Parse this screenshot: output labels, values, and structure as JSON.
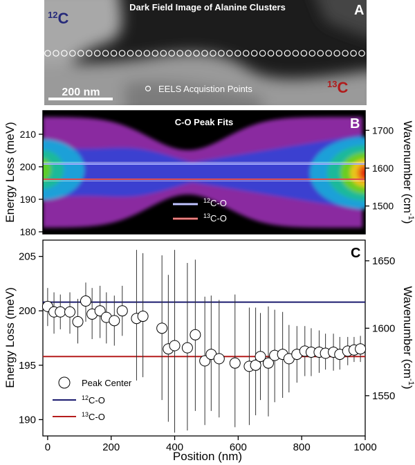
{
  "panel_a": {
    "title": "Dark Field Image of Alanine Clusters",
    "letter": "A",
    "label_12c_sup": "12",
    "label_12c": "C",
    "label_13c_sup": "13",
    "label_13c": "C",
    "scalebar": "200 nm",
    "legend": "EELS Acquistion Points",
    "colors": {
      "label_12c": "#262a7a",
      "label_13c": "#b01c1c"
    }
  },
  "panel_b": {
    "title": "C-O Peak Fits",
    "letter": "B",
    "ylabel_left": "Energy Loss (meV)",
    "ylabel_right": "Wavenumber (cm",
    "ylabel_right_sup": "-1",
    "ylabel_right_end": ")",
    "left_ticks": [
      "210",
      "200",
      "190",
      "180"
    ],
    "right_ticks": [
      "1700",
      "1600",
      "1500"
    ],
    "legend": [
      {
        "sup": "12",
        "text": "C-O",
        "color": "#aab0ff"
      },
      {
        "sup": "13",
        "text": "C-O",
        "color": "#e05050"
      }
    ]
  },
  "panel_c": {
    "letter": "C",
    "ylabel_left": "Energy Loss (meV)",
    "ylabel_right": "Wavenumber (cm",
    "ylabel_right_sup": "-1",
    "ylabel_right_end": ")",
    "xlabel": "Position (nm)",
    "legend": [
      {
        "label": "Peak Center",
        "kind": "marker"
      },
      {
        "sup": "12",
        "label": "C-O",
        "kind": "line",
        "color": "#1a1a6e"
      },
      {
        "sup": "13",
        "label": "C-O",
        "kind": "line",
        "color": "#b51c1c"
      }
    ]
  },
  "chart_data": {
    "type": "scatter",
    "xlabel": "Position (nm)",
    "ylabel": "Energy Loss (meV)",
    "ylabel_right": "Wavenumber (cm-1)",
    "xlim": [
      -15,
      1000
    ],
    "ylim": [
      188.5,
      206.5
    ],
    "x_ticks": [
      0,
      200,
      400,
      600,
      800,
      1000
    ],
    "y_ticks": [
      190,
      195,
      200,
      205
    ],
    "right_ticks": [
      1550,
      1600,
      1650
    ],
    "hlines": [
      {
        "name": "12C-O",
        "y": 200.8,
        "color": "#1a1a6e"
      },
      {
        "name": "13C-O",
        "y": 195.8,
        "color": "#b51c1c"
      }
    ],
    "series": [
      {
        "name": "Peak Center",
        "points": [
          {
            "x": 0,
            "y": 200.4,
            "lo": 198.6,
            "hi": 202.1
          },
          {
            "x": 20,
            "y": 199.9,
            "lo": 197.9,
            "hi": 201.7
          },
          {
            "x": 40,
            "y": 199.9,
            "lo": 198.3,
            "hi": 201.5
          },
          {
            "x": 70,
            "y": 199.9,
            "lo": 197.9,
            "hi": 201.7
          },
          {
            "x": 95,
            "y": 199.0,
            "lo": 197.0,
            "hi": 201.1
          },
          {
            "x": 120,
            "y": 200.9,
            "lo": 199.0,
            "hi": 202.6
          },
          {
            "x": 140,
            "y": 199.7,
            "lo": 197.4,
            "hi": 202.1
          },
          {
            "x": 165,
            "y": 200.0,
            "lo": 197.5,
            "hi": 202.3
          },
          {
            "x": 185,
            "y": 199.4,
            "lo": 197.0,
            "hi": 201.7
          },
          {
            "x": 210,
            "y": 199.1,
            "lo": 196.8,
            "hi": 201.4
          },
          {
            "x": 235,
            "y": 200.0,
            "lo": 197.7,
            "hi": 202.3
          },
          {
            "x": 280,
            "y": 199.3,
            "lo": 193.6,
            "hi": 205.6
          },
          {
            "x": 300,
            "y": 199.5,
            "lo": 193.9,
            "hi": 205.3
          },
          {
            "x": 360,
            "y": 198.4,
            "lo": 191.8,
            "hi": 205.1
          },
          {
            "x": 380,
            "y": 196.5,
            "lo": 189.8,
            "hi": 203.3
          },
          {
            "x": 400,
            "y": 196.8,
            "lo": 188.8,
            "hi": 205.6
          },
          {
            "x": 440,
            "y": 196.6,
            "lo": 189.0,
            "hi": 204.4
          },
          {
            "x": 465,
            "y": 197.8,
            "lo": 190.8,
            "hi": 204.7
          },
          {
            "x": 495,
            "y": 195.4,
            "lo": 189.5,
            "hi": 201.3
          },
          {
            "x": 515,
            "y": 196.0,
            "lo": 190.8,
            "hi": 201.4
          },
          {
            "x": 540,
            "y": 195.6,
            "lo": 190.2,
            "hi": 201.0
          },
          {
            "x": 590,
            "y": 195.2,
            "lo": 189.3,
            "hi": 201.5
          },
          {
            "x": 635,
            "y": 194.9,
            "lo": 189.5,
            "hi": 200.3
          },
          {
            "x": 655,
            "y": 195.0,
            "lo": 190.4,
            "hi": 200.3
          },
          {
            "x": 670,
            "y": 195.8,
            "lo": 191.8,
            "hi": 199.8
          },
          {
            "x": 695,
            "y": 195.2,
            "lo": 190.3,
            "hi": 200.4
          },
          {
            "x": 715,
            "y": 195.9,
            "lo": 191.6,
            "hi": 200.1
          },
          {
            "x": 740,
            "y": 196.0,
            "lo": 192.0,
            "hi": 199.9
          },
          {
            "x": 760,
            "y": 195.6,
            "lo": 192.5,
            "hi": 198.7
          },
          {
            "x": 785,
            "y": 196.0,
            "lo": 193.4,
            "hi": 198.6
          },
          {
            "x": 810,
            "y": 196.3,
            "lo": 194.0,
            "hi": 198.6
          },
          {
            "x": 830,
            "y": 196.2,
            "lo": 194.0,
            "hi": 198.4
          },
          {
            "x": 855,
            "y": 196.2,
            "lo": 194.3,
            "hi": 198.2
          },
          {
            "x": 875,
            "y": 196.1,
            "lo": 194.6,
            "hi": 197.9
          },
          {
            "x": 900,
            "y": 196.2,
            "lo": 194.5,
            "hi": 197.9
          },
          {
            "x": 920,
            "y": 196.0,
            "lo": 194.6,
            "hi": 197.6
          },
          {
            "x": 945,
            "y": 196.3,
            "lo": 195.0,
            "hi": 197.6
          },
          {
            "x": 965,
            "y": 196.4,
            "lo": 195.3,
            "hi": 197.6
          },
          {
            "x": 985,
            "y": 196.5,
            "lo": 195.3,
            "hi": 197.7
          }
        ]
      }
    ]
  }
}
